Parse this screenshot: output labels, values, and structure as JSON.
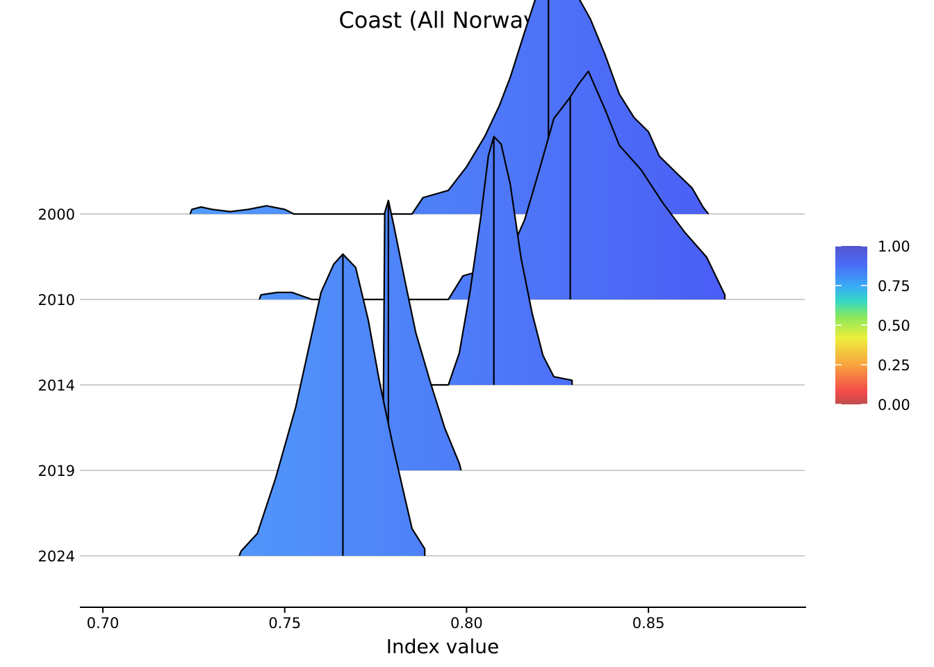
{
  "chart_data": {
    "type": "ridgeline",
    "title": "Coast (All Norway)",
    "xlabel": "Index value",
    "ylabel": "",
    "xlim": [
      0.693,
      0.893
    ],
    "x_ticks": [
      "0.70",
      "0.75",
      "0.80",
      "0.85"
    ],
    "x_tick_values": [
      0.7,
      0.75,
      0.8,
      0.85
    ],
    "categories": [
      "2000",
      "2010",
      "2014",
      "2019",
      "2024"
    ],
    "median_line": true,
    "ridges": [
      {
        "year": "2000",
        "median": 0.8225,
        "outline": [
          [
            0.724,
            0.0
          ],
          [
            0.7245,
            0.016
          ],
          [
            0.727,
            0.024
          ],
          [
            0.73,
            0.016
          ],
          [
            0.735,
            0.008
          ],
          [
            0.74,
            0.016
          ],
          [
            0.745,
            0.028
          ],
          [
            0.75,
            0.016
          ],
          [
            0.7525,
            0.0
          ],
          [
            0.7525,
            0.0
          ],
          [
            0.785,
            0.0
          ],
          [
            0.788,
            0.056
          ],
          [
            0.795,
            0.081
          ],
          [
            0.8,
            0.162
          ],
          [
            0.805,
            0.266
          ],
          [
            0.809,
            0.371
          ],
          [
            0.812,
            0.468
          ],
          [
            0.816,
            0.625
          ],
          [
            0.82,
            0.778
          ],
          [
            0.8225,
            0.851
          ],
          [
            0.826,
            0.839
          ],
          [
            0.83,
            0.758
          ],
          [
            0.834,
            0.669
          ],
          [
            0.838,
            0.548
          ],
          [
            0.842,
            0.411
          ],
          [
            0.846,
            0.331
          ],
          [
            0.85,
            0.282
          ],
          [
            0.853,
            0.198
          ],
          [
            0.858,
            0.137
          ],
          [
            0.862,
            0.089
          ],
          [
            0.865,
            0.024
          ],
          [
            0.8665,
            0.0
          ]
        ]
      },
      {
        "year": "2010",
        "median": 0.8285,
        "outline": [
          [
            0.743,
            0.0
          ],
          [
            0.7435,
            0.016
          ],
          [
            0.748,
            0.024
          ],
          [
            0.752,
            0.024
          ],
          [
            0.7575,
            0.0
          ],
          [
            0.7575,
            0.0
          ],
          [
            0.795,
            0.0
          ],
          [
            0.799,
            0.081
          ],
          [
            0.806,
            0.105
          ],
          [
            0.812,
            0.161
          ],
          [
            0.816,
            0.274
          ],
          [
            0.82,
            0.444
          ],
          [
            0.824,
            0.62
          ],
          [
            0.828,
            0.685
          ],
          [
            0.831,
            0.742
          ],
          [
            0.8335,
            0.782
          ],
          [
            0.838,
            0.653
          ],
          [
            0.842,
            0.528
          ],
          [
            0.848,
            0.444
          ],
          [
            0.854,
            0.33
          ],
          [
            0.86,
            0.23
          ],
          [
            0.866,
            0.145
          ],
          [
            0.871,
            0.016
          ],
          [
            0.871,
            0.0
          ]
        ]
      },
      {
        "year": "2014",
        "median": 0.8075,
        "outline": [
          [
            0.787,
            0.0
          ],
          [
            0.795,
            0.0
          ],
          [
            0.798,
            0.109
          ],
          [
            0.801,
            0.323
          ],
          [
            0.804,
            0.583
          ],
          [
            0.806,
            0.786
          ],
          [
            0.8075,
            0.851
          ],
          [
            0.8095,
            0.825
          ],
          [
            0.812,
            0.688
          ],
          [
            0.815,
            0.433
          ],
          [
            0.818,
            0.247
          ],
          [
            0.821,
            0.101
          ],
          [
            0.824,
            0.028
          ],
          [
            0.829,
            0.016
          ],
          [
            0.829,
            0.0
          ]
        ]
      },
      {
        "year": "2019",
        "median": 0.7785,
        "outline": [
          [
            0.777,
            0.0
          ],
          [
            0.7775,
            0.883
          ],
          [
            0.7785,
            0.925
          ],
          [
            0.78,
            0.839
          ],
          [
            0.783,
            0.653
          ],
          [
            0.786,
            0.474
          ],
          [
            0.79,
            0.303
          ],
          [
            0.794,
            0.145
          ],
          [
            0.798,
            0.024
          ],
          [
            0.7985,
            0.0
          ]
        ]
      },
      {
        "year": "2024",
        "median": 0.766,
        "outline": [
          [
            0.7375,
            0.0
          ],
          [
            0.738,
            0.016
          ],
          [
            0.7425,
            0.077
          ],
          [
            0.7475,
            0.266
          ],
          [
            0.753,
            0.508
          ],
          [
            0.757,
            0.734
          ],
          [
            0.76,
            0.903
          ],
          [
            0.7635,
            1.0
          ],
          [
            0.766,
            1.034
          ],
          [
            0.7695,
            0.988
          ],
          [
            0.773,
            0.806
          ],
          [
            0.776,
            0.6
          ],
          [
            0.78,
            0.363
          ],
          [
            0.785,
            0.093
          ],
          [
            0.7885,
            0.024
          ],
          [
            0.7885,
            0.0
          ]
        ]
      }
    ],
    "colorbar": {
      "ticks": [
        "0.00",
        "0.25",
        "0.50",
        "0.75",
        "1.00"
      ],
      "tick_values": [
        0.0,
        0.25,
        0.5,
        0.75,
        1.0
      ],
      "stops": [
        {
          "value": 0.0,
          "color": "#bf4e4e"
        },
        {
          "value": 0.08,
          "color": "#f44a4a"
        },
        {
          "value": 0.25,
          "color": "#f9a33e"
        },
        {
          "value": 0.42,
          "color": "#ecef3c"
        },
        {
          "value": 0.55,
          "color": "#8ce85b"
        },
        {
          "value": 0.65,
          "color": "#36d9c4"
        },
        {
          "value": 0.75,
          "color": "#3aa9f7"
        },
        {
          "value": 0.88,
          "color": "#4a6cf7"
        },
        {
          "value": 1.0,
          "color": "#5454cf"
        }
      ],
      "fill_gradient": [
        "#52a6fb",
        "#4a54f5"
      ]
    },
    "grid_color": "#cccccc"
  }
}
